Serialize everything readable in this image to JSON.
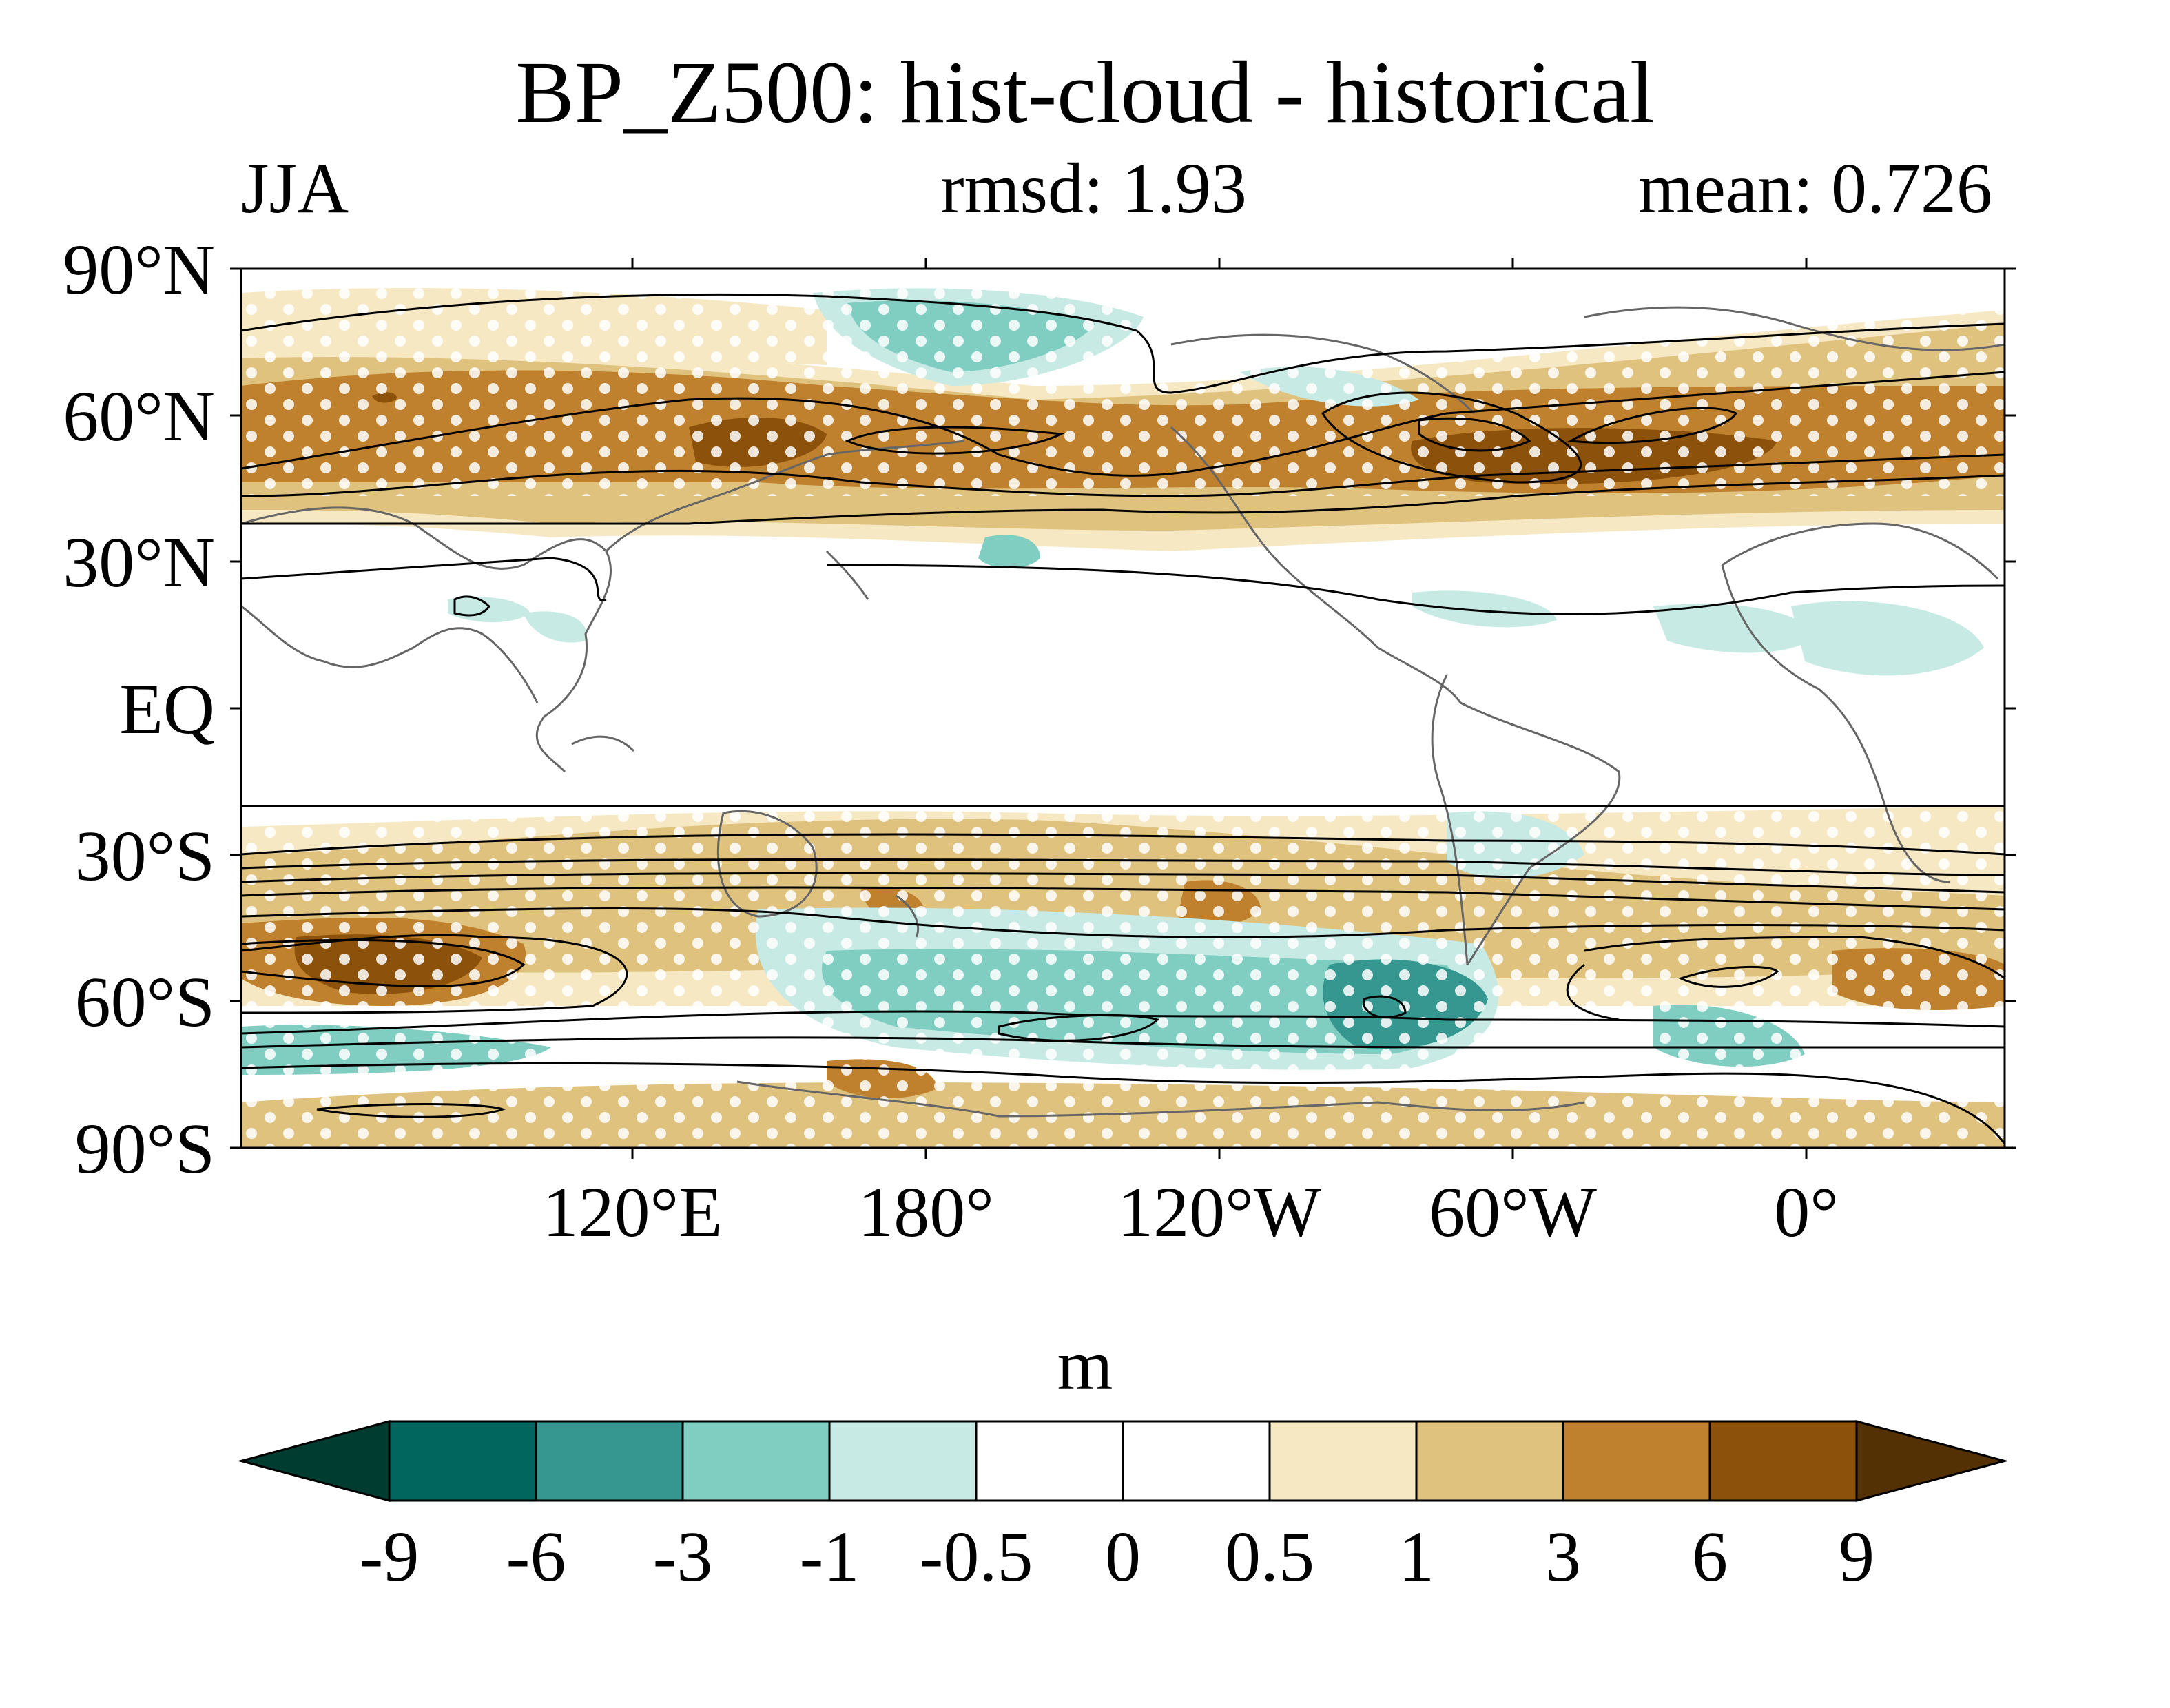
{
  "title": "BP_Z500: hist-cloud - historical",
  "season": "JJA",
  "rmsd_label": "rmsd: 1.93",
  "mean_label": "mean: 0.726",
  "units": "m",
  "lat_labels": [
    "90°N",
    "60°N",
    "30°N",
    "EQ",
    "30°S",
    "60°S",
    "90°S"
  ],
  "lon_labels": [
    "120°E",
    "180°",
    "120°W",
    "60°W",
    "0°"
  ],
  "colorbar": {
    "levels": [
      "-9",
      "-6",
      "-3",
      "-1",
      "-0.5",
      "0",
      "0.5",
      "1",
      "3",
      "6",
      "9"
    ],
    "colors": [
      "#003c30",
      "#01665e",
      "#35978f",
      "#80cdc1",
      "#c7eae5",
      "#ffffff",
      "#ffffff",
      "#f6e8c3",
      "#dfc27d",
      "#bf812d",
      "#8c510a",
      "#543005"
    ]
  },
  "colors": {
    "coast": "#666666",
    "contour": "#000000",
    "stipple": "#ffffff"
  }
}
